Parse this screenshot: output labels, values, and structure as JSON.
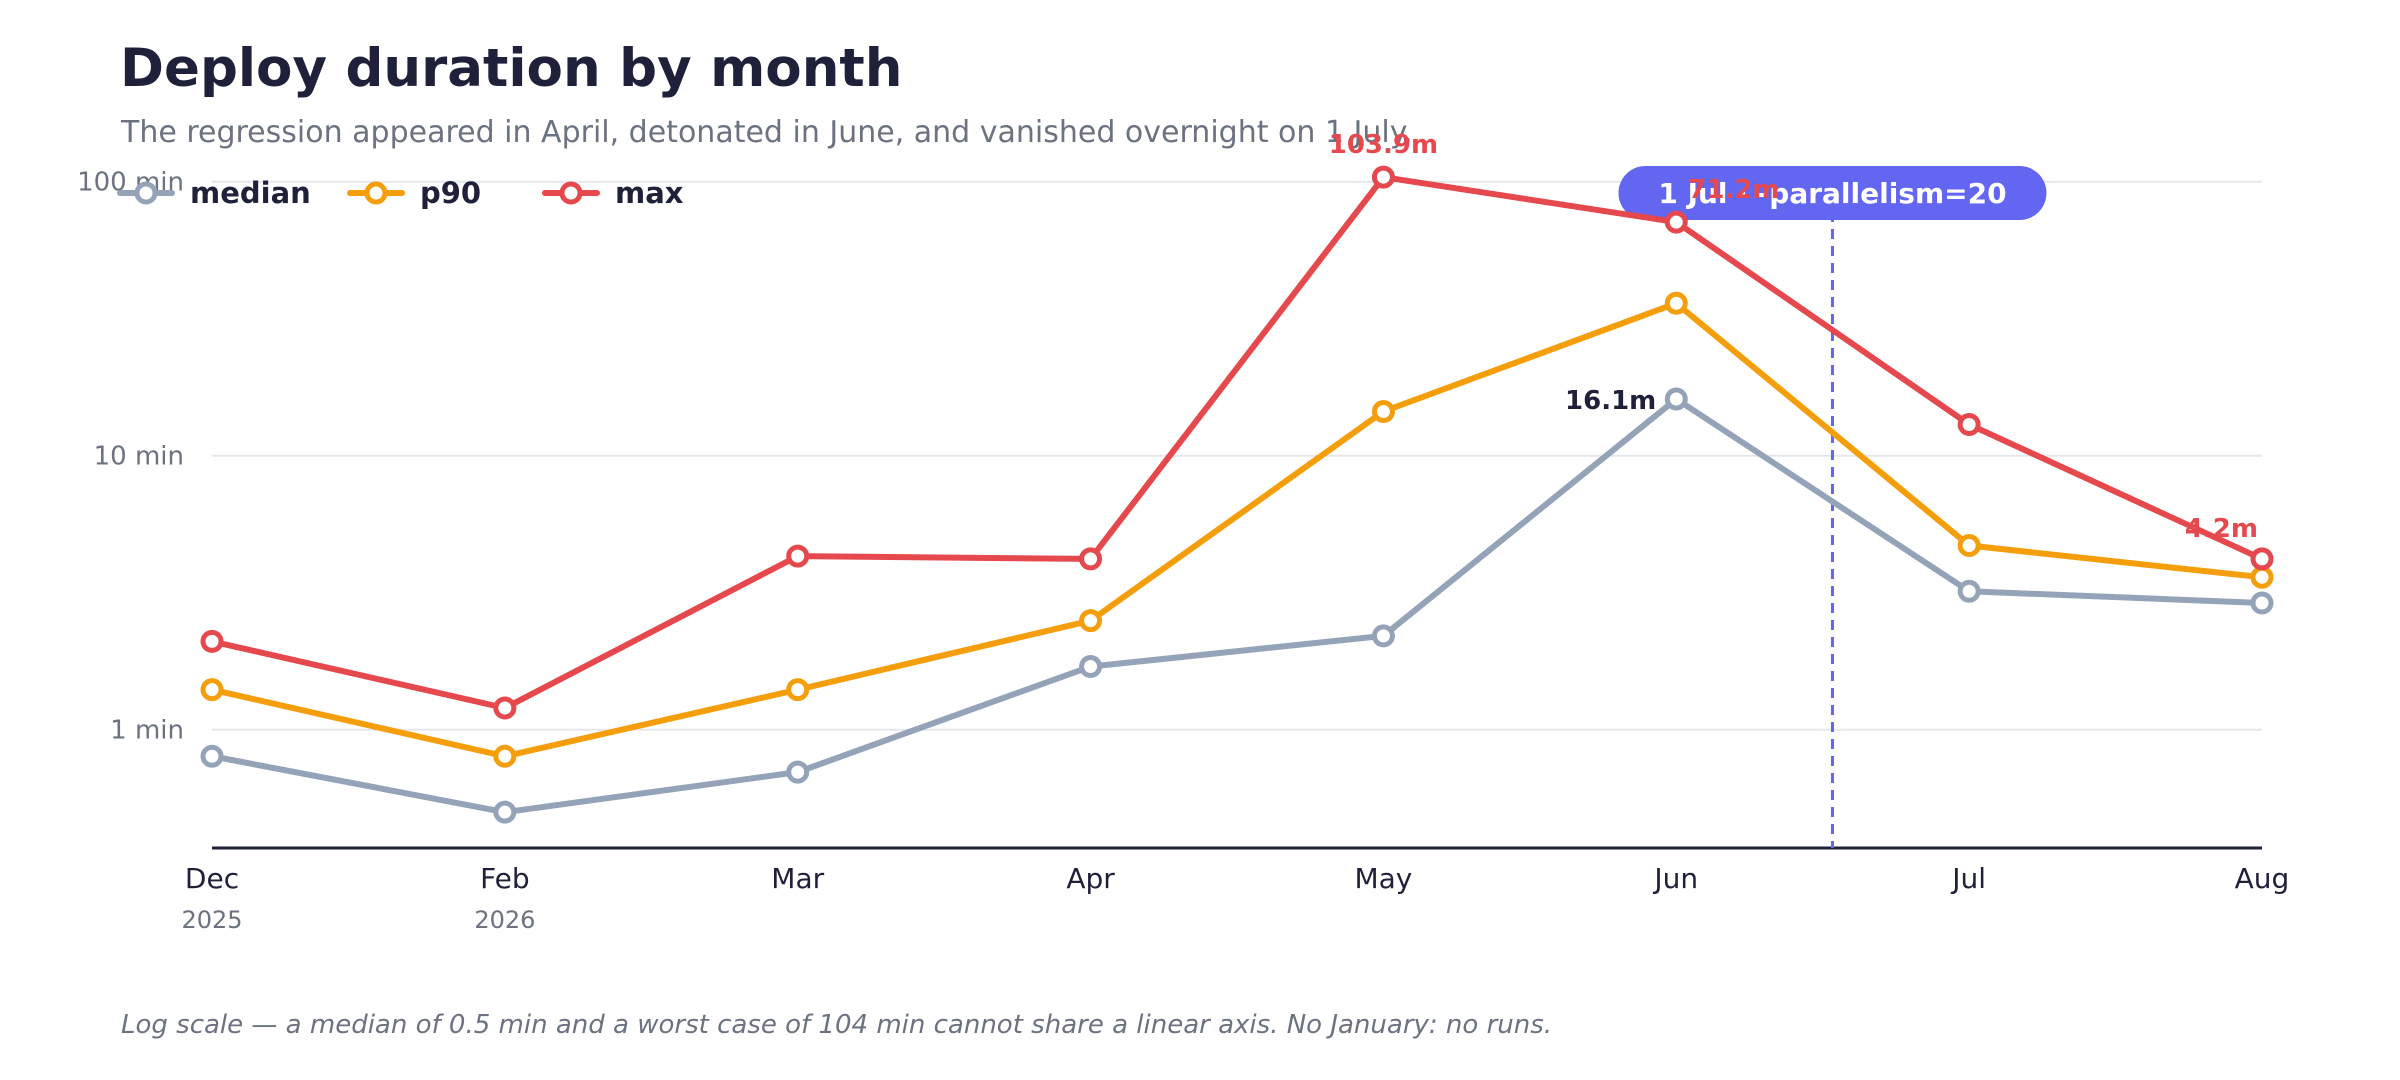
{
  "chart_data": {
    "type": "line",
    "title": "Deploy duration by month",
    "subtitle": "The regression appeared in April, detonated in June, and vanished overnight on 1 July.",
    "footnote": "Log scale — a median of 0.5 min and a worst case of 104 min cannot share a linear axis. No January: no runs.",
    "y_scale": "log",
    "ylim": [
      0.37,
      120
    ],
    "y_ticks": [
      {
        "value": 1,
        "label": "1 min"
      },
      {
        "value": 10,
        "label": "10 min"
      },
      {
        "value": 100,
        "label": "100 min"
      }
    ],
    "grid": true,
    "legend_position": "top-left",
    "categories": [
      {
        "label": "Dec",
        "year": "2025",
        "date": "2025-12"
      },
      {
        "label": "Feb",
        "year": "2026",
        "date": "2026-02"
      },
      {
        "label": "Mar",
        "year": "",
        "date": "2026-03"
      },
      {
        "label": "Apr",
        "year": "",
        "date": "2026-04"
      },
      {
        "label": "May",
        "year": "",
        "date": "2026-05"
      },
      {
        "label": "Jun",
        "year": "",
        "date": "2026-06"
      },
      {
        "label": "Jul",
        "year": "",
        "date": "2026-07"
      },
      {
        "label": "Aug",
        "year": "",
        "date": "2026-08"
      }
    ],
    "series": [
      {
        "name": "median",
        "color": "#94a3b8",
        "values": [
          0.8,
          0.5,
          0.7,
          1.7,
          2.2,
          16.1,
          3.2,
          2.9
        ],
        "labels": [
          null,
          null,
          null,
          null,
          null,
          "16.1m",
          null,
          null
        ]
      },
      {
        "name": "p90",
        "color": "#f59e0b",
        "values": [
          1.4,
          0.8,
          1.4,
          2.5,
          14.5,
          36.0,
          4.7,
          3.6
        ],
        "labels": [
          null,
          null,
          null,
          null,
          null,
          null,
          null,
          null
        ]
      },
      {
        "name": "max",
        "color": "#e5484d",
        "values": [
          2.1,
          1.2,
          4.3,
          4.2,
          103.9,
          71.2,
          13.0,
          4.2
        ],
        "labels": [
          null,
          null,
          null,
          null,
          "103.9m",
          "71.2m",
          null,
          "4.2m"
        ]
      }
    ],
    "annotation": {
      "label": "1 Jul · -parallelism=20",
      "date": "2026-07-01",
      "color": "#6366f1"
    }
  }
}
